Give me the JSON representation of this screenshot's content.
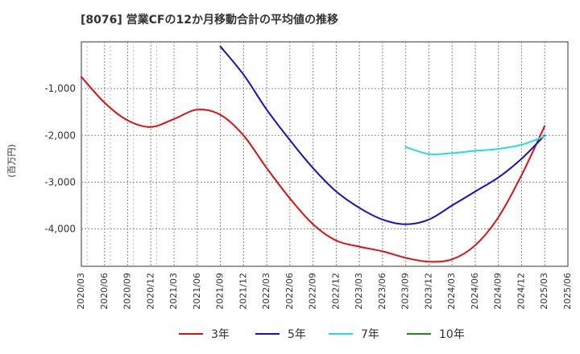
{
  "title": "[8076]  営業CFの12か月移動合計の平均値の推移",
  "chart_data": {
    "type": "line",
    "title": "[8076]  営業CFの12か月移動合計の平均値の推移",
    "ylabel": "(百万円)",
    "xlabel": "",
    "ylim": [
      -4800,
      0
    ],
    "yticks": [
      -1000,
      -2000,
      -3000,
      -4000
    ],
    "ytick_labels": [
      "-1,000",
      "-2,000",
      "-3,000",
      "-4,000"
    ],
    "xtick_labels": [
      "2020/03",
      "2020/06",
      "2020/09",
      "2020/12",
      "2021/03",
      "2021/06",
      "2021/09",
      "2021/12",
      "2022/03",
      "2022/06",
      "2022/09",
      "2022/12",
      "2023/03",
      "2023/06",
      "2023/09",
      "2023/12",
      "2024/03",
      "2024/06",
      "2024/09",
      "2024/12",
      "2025/03",
      "2025/06"
    ],
    "grid": true,
    "legend_position": "bottom",
    "series": [
      {
        "name": "3年",
        "color": "#dd1111",
        "points": [
          [
            "2020/03",
            -750
          ],
          [
            "2020/06",
            -1300
          ],
          [
            "2020/09",
            -1680
          ],
          [
            "2020/12",
            -1820
          ],
          [
            "2021/03",
            -1650
          ],
          [
            "2021/06",
            -1450
          ],
          [
            "2021/09",
            -1560
          ],
          [
            "2021/12",
            -2000
          ],
          [
            "2022/03",
            -2700
          ],
          [
            "2022/06",
            -3350
          ],
          [
            "2022/09",
            -3900
          ],
          [
            "2022/12",
            -4250
          ],
          [
            "2023/03",
            -4380
          ],
          [
            "2023/06",
            -4480
          ],
          [
            "2023/09",
            -4620
          ],
          [
            "2023/12",
            -4700
          ],
          [
            "2024/03",
            -4650
          ],
          [
            "2024/06",
            -4350
          ],
          [
            "2024/09",
            -3750
          ],
          [
            "2024/12",
            -2850
          ],
          [
            "2025/03",
            -1800
          ]
        ]
      },
      {
        "name": "5年",
        "color": "#1111cc",
        "points": [
          [
            "2021/09",
            -100
          ],
          [
            "2021/12",
            -700
          ],
          [
            "2022/03",
            -1450
          ],
          [
            "2022/06",
            -2100
          ],
          [
            "2022/09",
            -2700
          ],
          [
            "2022/12",
            -3200
          ],
          [
            "2023/03",
            -3550
          ],
          [
            "2023/06",
            -3800
          ],
          [
            "2023/09",
            -3900
          ],
          [
            "2023/12",
            -3800
          ],
          [
            "2024/03",
            -3500
          ],
          [
            "2024/06",
            -3200
          ],
          [
            "2024/09",
            -2900
          ],
          [
            "2024/12",
            -2500
          ],
          [
            "2025/03",
            -2000
          ]
        ]
      },
      {
        "name": "7年",
        "color": "#22dddd",
        "points": [
          [
            "2023/09",
            -2250
          ],
          [
            "2023/12",
            -2400
          ],
          [
            "2024/03",
            -2380
          ],
          [
            "2024/06",
            -2330
          ],
          [
            "2024/09",
            -2290
          ],
          [
            "2024/12",
            -2200
          ],
          [
            "2025/03",
            -2020
          ]
        ]
      },
      {
        "name": "10年",
        "color": "#228822",
        "points": []
      }
    ]
  }
}
